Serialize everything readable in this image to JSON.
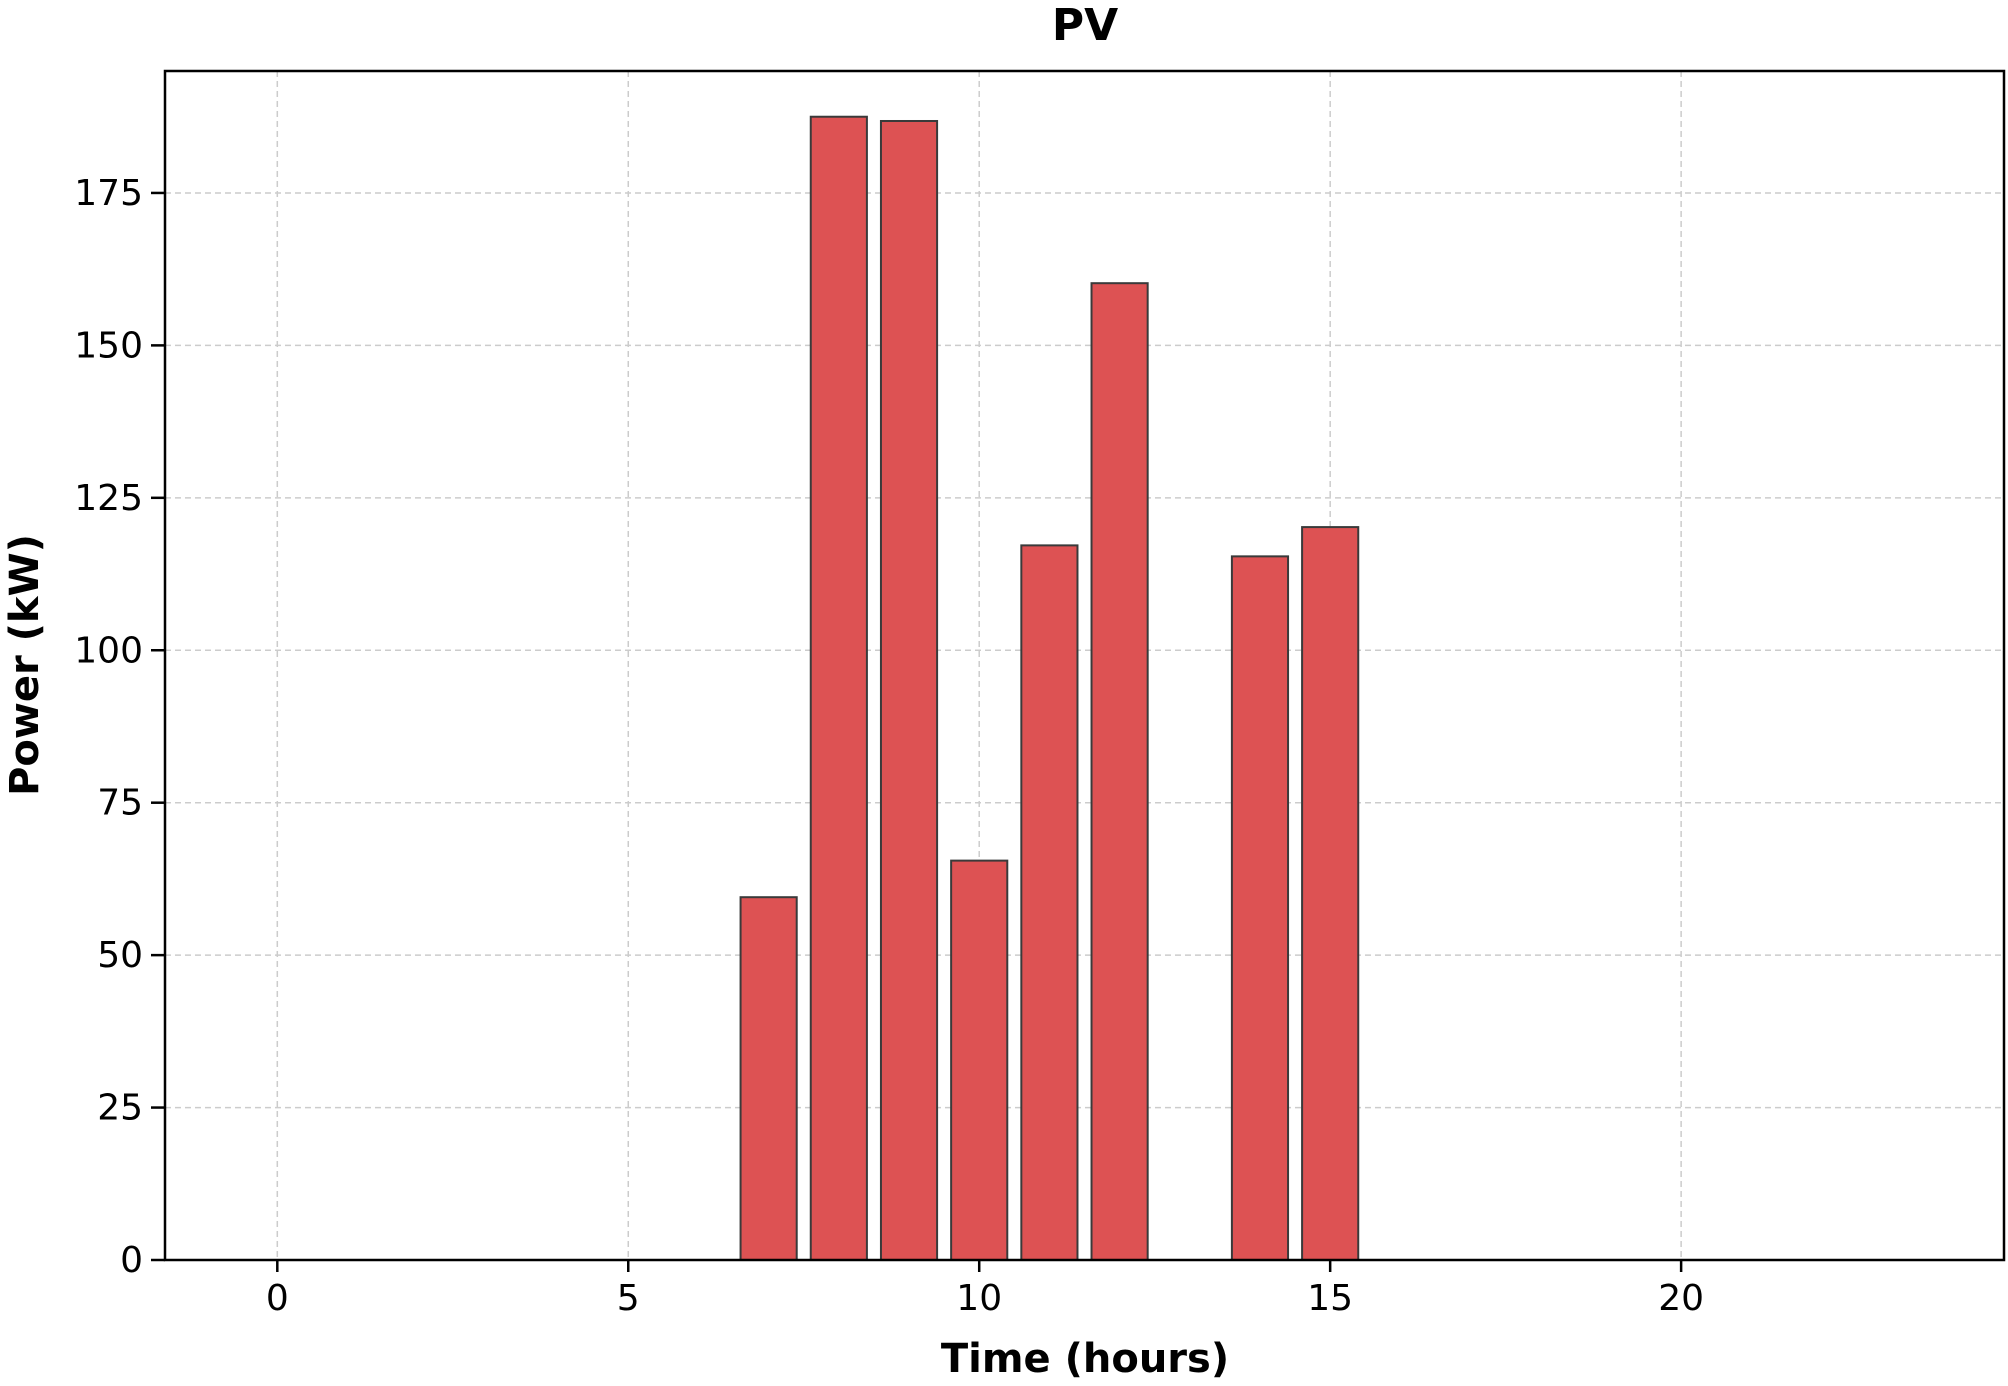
{
  "chart_data": {
    "type": "bar",
    "title": "PV",
    "xlabel": "Time (hours)",
    "ylabel": "Power (kW)",
    "x": [
      7,
      8,
      9,
      10,
      11,
      12,
      14,
      15
    ],
    "values": [
      59.5,
      187.5,
      186.8,
      65.5,
      117.2,
      160.2,
      115.4,
      120.2
    ],
    "bar_width": 0.8,
    "xlim": [
      -1.6,
      24.6
    ],
    "ylim": [
      0,
      195
    ],
    "xticks": [
      0,
      5,
      10,
      15,
      20
    ],
    "yticks": [
      0,
      25,
      50,
      75,
      100,
      125,
      150,
      175
    ],
    "grid": true,
    "legend": "none",
    "colors": {
      "bar_fill": "#dd5253",
      "bar_edge": "#3a3a3a",
      "grid": "#cccccc",
      "axis": "#000000"
    }
  }
}
